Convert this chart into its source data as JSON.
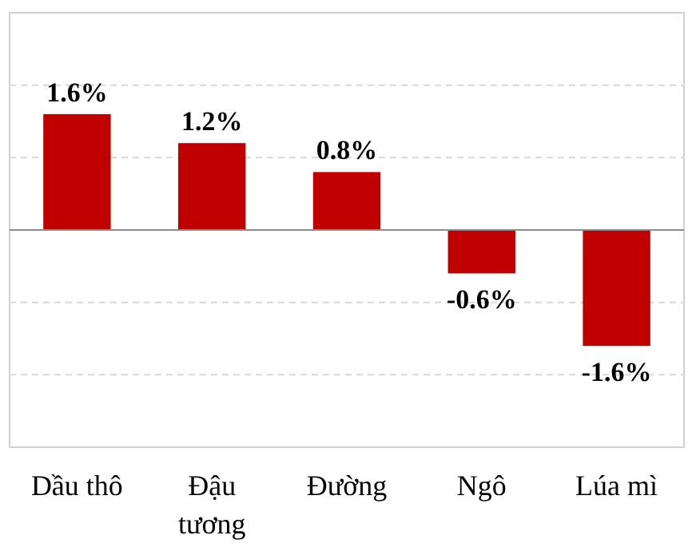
{
  "chart_data": {
    "type": "bar",
    "categories": [
      "Dầu thô",
      "Đậu tương",
      "Đường",
      "Ngô",
      "Lúa mì"
    ],
    "values": [
      1.6,
      1.2,
      0.8,
      -0.6,
      -1.6
    ],
    "value_labels": [
      "1.6%",
      "1.2%",
      "0.8%",
      "-0.6%",
      "-1.6%"
    ],
    "color": "#c00000",
    "ylim": [
      -3,
      3
    ],
    "yticks": [
      {
        "value": -2,
        "label": null
      },
      {
        "value": -1,
        "label": null
      },
      {
        "value": 0,
        "label": null
      },
      {
        "value": 1,
        "label": null
      },
      {
        "value": 2,
        "label": null
      }
    ],
    "grid": "y",
    "tick_labels": "x"
  }
}
